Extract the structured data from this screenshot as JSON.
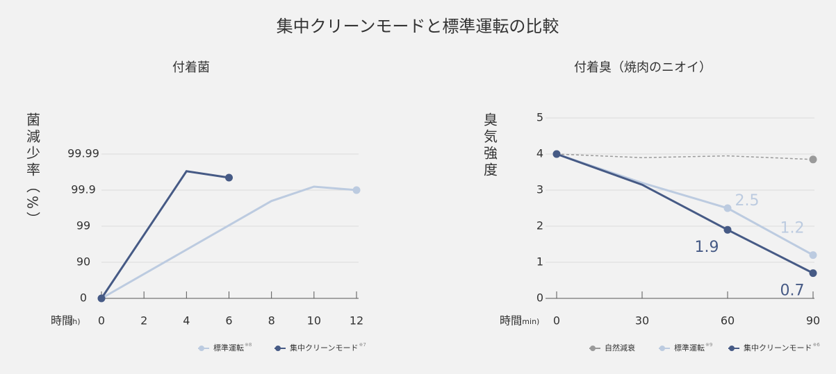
{
  "title": "集中クリーンモードと標準運転の比較",
  "chart_data": [
    {
      "type": "line",
      "title": "付着菌",
      "ylabel": "菌減少率（%）",
      "xlabel": "時間",
      "xunit": "(h)",
      "y_scale": "log-remaining",
      "ylim": [
        0,
        99.999
      ],
      "yticks": [
        0,
        90,
        99,
        99.9,
        99.99
      ],
      "xlim": [
        0,
        12
      ],
      "xticks": [
        0,
        2,
        4,
        6,
        8,
        10,
        12
      ],
      "grid": true,
      "series": [
        {
          "name": "標準運転",
          "name_note": "※8",
          "color": "#bccbe0",
          "x": [
            0,
            8,
            10,
            12
          ],
          "values": [
            0,
            99.8,
            99.92,
            99.9
          ]
        },
        {
          "name": "集中クリーンモード",
          "name_note": "※7",
          "color": "#465a85",
          "x": [
            0,
            4,
            6
          ],
          "values": [
            0,
            99.97,
            99.955
          ]
        }
      ]
    },
    {
      "type": "line",
      "title": "付着臭（焼肉のニオイ）",
      "ylabel": "臭気強度",
      "xlabel": "時間",
      "xunit": "(min)",
      "ylim": [
        0,
        5
      ],
      "yticks": [
        0,
        1,
        2,
        3,
        4,
        5
      ],
      "xlim": [
        0,
        90
      ],
      "xticks": [
        0,
        30,
        60,
        90
      ],
      "grid": true,
      "series": [
        {
          "name": "自然減衰",
          "color": "#9a9a9a",
          "dashed": true,
          "x": [
            0,
            30,
            60,
            90
          ],
          "values": [
            4,
            3.9,
            3.95,
            3.85
          ]
        },
        {
          "name": "標準運転",
          "name_note": "※9",
          "color": "#bccbe0",
          "x": [
            0,
            30,
            60,
            90
          ],
          "values": [
            4,
            3.2,
            2.5,
            1.2
          ],
          "value_labels": [
            null,
            null,
            "2.5",
            "1.2"
          ]
        },
        {
          "name": "集中クリーンモード",
          "name_note": "※6",
          "color": "#465a85",
          "x": [
            0,
            30,
            60,
            90
          ],
          "values": [
            4,
            3.15,
            1.9,
            0.7
          ],
          "value_labels": [
            null,
            null,
            "1.9",
            "0.7"
          ]
        }
      ]
    }
  ]
}
